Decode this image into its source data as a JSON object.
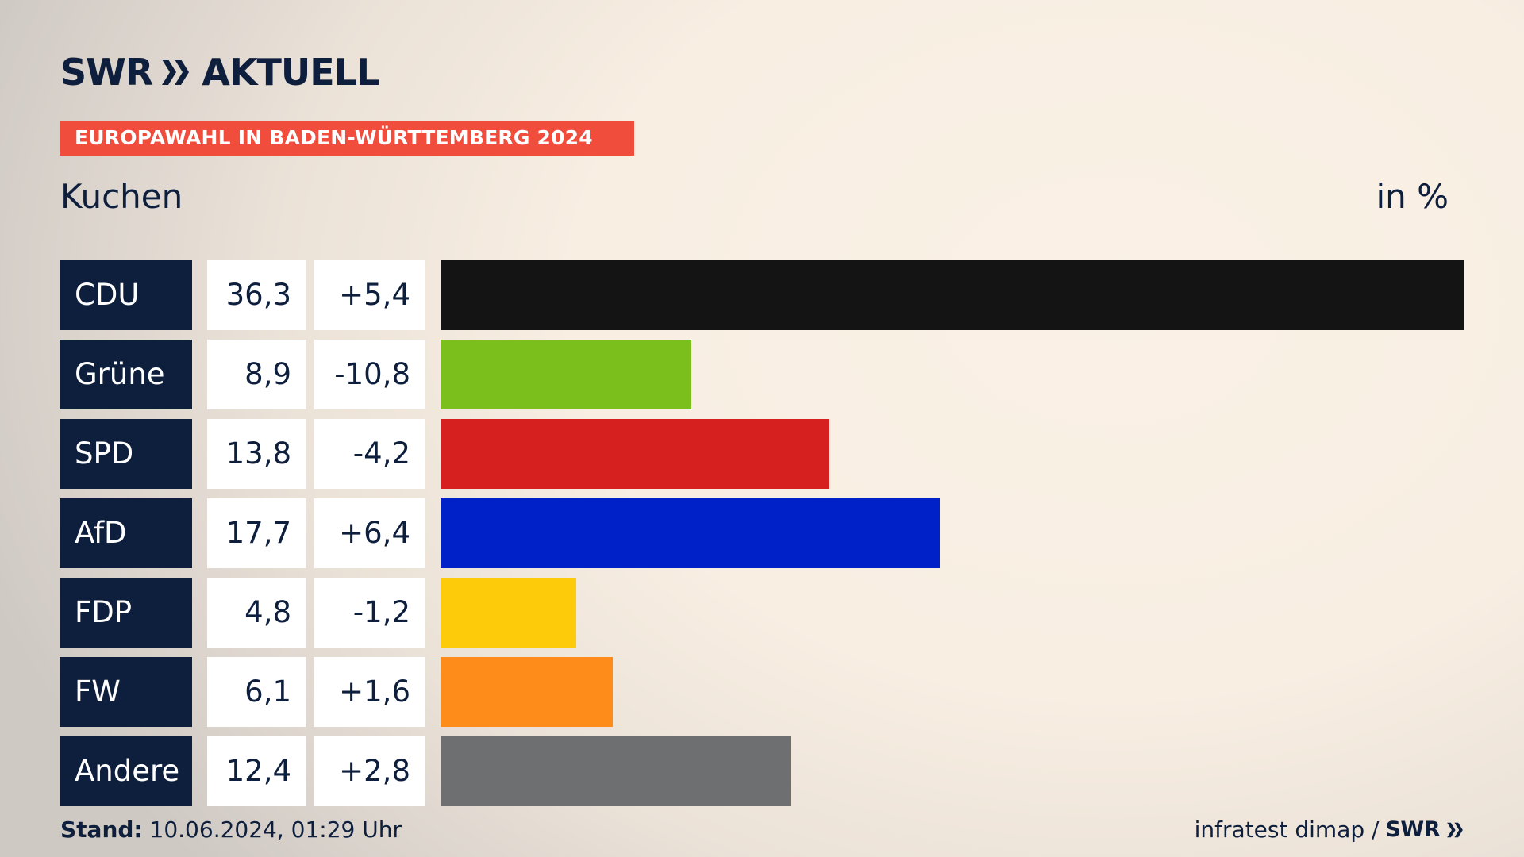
{
  "header": {
    "logo_swr": "SWR",
    "logo_aktuell": "AKTUELL",
    "banner": "EUROPAWAHL IN BADEN-WÜRTTEMBERG 2024"
  },
  "colors": {
    "navy": "#0e1f3d",
    "banner": "#f14d3c"
  },
  "chart_data": {
    "type": "bar",
    "orientation": "horizontal",
    "title": "Kuchen",
    "unit": "in %",
    "categories": [
      "CDU",
      "Grüne",
      "SPD",
      "AfD",
      "FDP",
      "FW",
      "Andere"
    ],
    "values": [
      36.3,
      8.9,
      13.8,
      17.7,
      4.8,
      6.1,
      12.4
    ],
    "value_labels": [
      "36,3",
      "8,9",
      "13,8",
      "17,7",
      "4,8",
      "6,1",
      "12,4"
    ],
    "diff_labels": [
      "+5,4",
      "-10,8",
      "-4,2",
      "+6,4",
      "-1,2",
      "+1,6",
      "+2,8"
    ],
    "bar_colors": [
      "#141414",
      "#7abf1c",
      "#d61f1f",
      "#0021c7",
      "#fdcb0a",
      "#fd8c1a",
      "#6e6f71"
    ],
    "xlim": [
      0,
      36.3
    ],
    "grid": false
  },
  "footer": {
    "stand_label": "Stand:",
    "stand_value": "10.06.2024, 01:29 Uhr",
    "source": "infratest dimap /",
    "source_logo": "SWR"
  }
}
